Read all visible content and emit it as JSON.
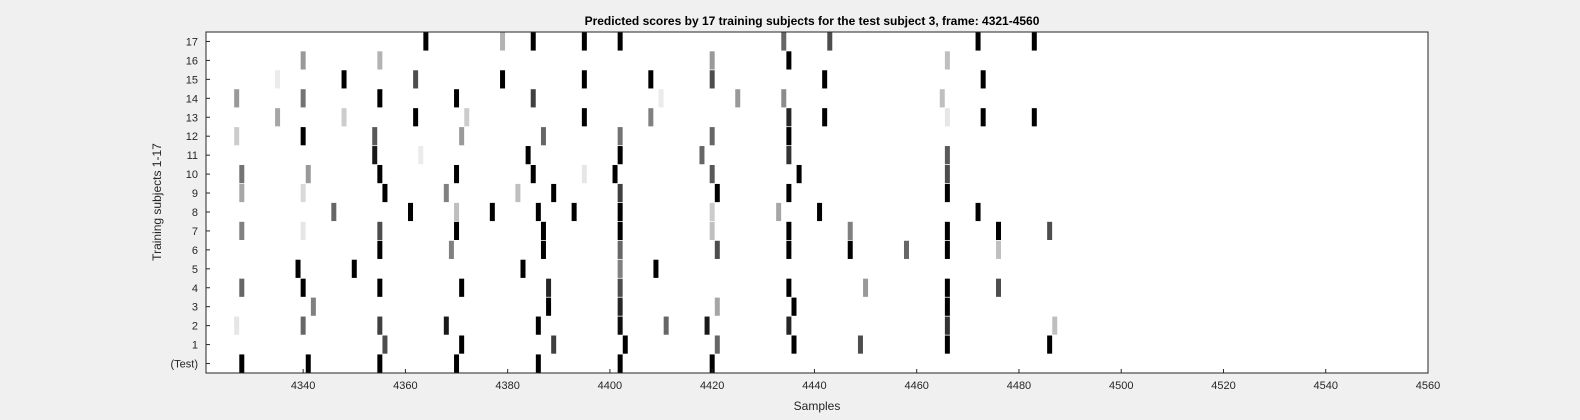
{
  "chart_data": {
    "type": "heatmap",
    "title": "Predicted scores by 17 training subjects for the test subject 3, frame: 4321-4560",
    "xlabel": "Samples",
    "ylabel": "Training subjects 1-17",
    "xlim": [
      4321,
      4560
    ],
    "x_ticks": [
      "4340",
      "4360",
      "4380",
      "4400",
      "4420",
      "4440",
      "4460",
      "4480",
      "4500",
      "4520",
      "4540",
      "4560"
    ],
    "y_tick_labels": [
      "(Test)",
      "1",
      "2",
      "3",
      "4",
      "5",
      "6",
      "7",
      "8",
      "9",
      "10",
      "11",
      "12",
      "13",
      "14",
      "15",
      "16",
      "17"
    ],
    "grid": false,
    "colormap": "gray-inverted",
    "rows": [
      {
        "label": "(Test)",
        "marks": [
          [
            4328,
            1.0
          ],
          [
            4341,
            1.0
          ],
          [
            4355,
            1.0
          ],
          [
            4370,
            1.0
          ],
          [
            4386,
            1.0
          ],
          [
            4402,
            1.0
          ],
          [
            4420,
            1.0
          ]
        ]
      },
      {
        "label": "1",
        "marks": [
          [
            4356,
            0.7
          ],
          [
            4371,
            1.0
          ],
          [
            4389,
            0.75
          ],
          [
            4403,
            1.0
          ],
          [
            4421,
            0.6
          ],
          [
            4436,
            1.0
          ],
          [
            4449,
            0.7
          ],
          [
            4466,
            1.0
          ],
          [
            4486,
            1.0
          ]
        ]
      },
      {
        "label": "2",
        "marks": [
          [
            4327,
            0.1
          ],
          [
            4340,
            0.6
          ],
          [
            4355,
            0.75
          ],
          [
            4368,
            0.9
          ],
          [
            4386,
            1.0
          ],
          [
            4402,
            0.95
          ],
          [
            4411,
            0.6
          ],
          [
            4419,
            0.9
          ],
          [
            4435,
            0.85
          ],
          [
            4466,
            0.8
          ],
          [
            4487,
            0.25
          ]
        ]
      },
      {
        "label": "3",
        "marks": [
          [
            4342,
            0.5
          ],
          [
            4388,
            1.0
          ],
          [
            4402,
            0.85
          ],
          [
            4421,
            0.35
          ],
          [
            4436,
            1.0
          ],
          [
            4466,
            1.0
          ]
        ]
      },
      {
        "label": "4",
        "marks": [
          [
            4328,
            0.6
          ],
          [
            4340,
            1.0
          ],
          [
            4355,
            1.0
          ],
          [
            4371,
            1.0
          ],
          [
            4388,
            0.85
          ],
          [
            4402,
            0.7
          ],
          [
            4435,
            1.0
          ],
          [
            4450,
            0.4
          ],
          [
            4466,
            1.0
          ],
          [
            4476,
            0.7
          ]
        ]
      },
      {
        "label": "5",
        "marks": [
          [
            4339,
            1.0
          ],
          [
            4350,
            1.0
          ],
          [
            4383,
            1.0
          ],
          [
            4402,
            0.5
          ],
          [
            4409,
            1.0
          ]
        ]
      },
      {
        "label": "6",
        "marks": [
          [
            4355,
            1.0
          ],
          [
            4369,
            0.5
          ],
          [
            4387,
            1.0
          ],
          [
            4402,
            0.6
          ],
          [
            4421,
            0.7
          ],
          [
            4435,
            1.0
          ],
          [
            4447,
            1.0
          ],
          [
            4458,
            0.6
          ],
          [
            4466,
            1.0
          ],
          [
            4476,
            0.25
          ]
        ]
      },
      {
        "label": "7",
        "marks": [
          [
            4328,
            0.5
          ],
          [
            4340,
            0.1
          ],
          [
            4355,
            0.7
          ],
          [
            4370,
            1.0
          ],
          [
            4387,
            1.0
          ],
          [
            4402,
            1.0
          ],
          [
            4420,
            0.25
          ],
          [
            4435,
            1.0
          ],
          [
            4447,
            0.5
          ],
          [
            4466,
            1.0
          ],
          [
            4476,
            1.0
          ],
          [
            4486,
            0.7
          ]
        ]
      },
      {
        "label": "8",
        "marks": [
          [
            4346,
            0.6
          ],
          [
            4361,
            1.0
          ],
          [
            4370,
            0.25
          ],
          [
            4377,
            1.0
          ],
          [
            4386,
            1.0
          ],
          [
            4393,
            1.0
          ],
          [
            4402,
            1.0
          ],
          [
            4420,
            0.2
          ],
          [
            4433,
            0.35
          ],
          [
            4441,
            1.0
          ],
          [
            4472,
            1.0
          ]
        ]
      },
      {
        "label": "9",
        "marks": [
          [
            4328,
            0.35
          ],
          [
            4340,
            0.15
          ],
          [
            4356,
            1.0
          ],
          [
            4368,
            0.5
          ],
          [
            4382,
            0.25
          ],
          [
            4389,
            1.0
          ],
          [
            4402,
            0.75
          ],
          [
            4421,
            1.0
          ],
          [
            4435,
            1.0
          ],
          [
            4466,
            1.0
          ]
        ]
      },
      {
        "label": "10",
        "marks": [
          [
            4328,
            0.55
          ],
          [
            4341,
            0.4
          ],
          [
            4355,
            1.0
          ],
          [
            4370,
            1.0
          ],
          [
            4385,
            1.0
          ],
          [
            4395,
            0.1
          ],
          [
            4401,
            1.0
          ],
          [
            4420,
            0.65
          ],
          [
            4437,
            1.0
          ],
          [
            4466,
            0.7
          ]
        ]
      },
      {
        "label": "11",
        "marks": [
          [
            4354,
            0.9
          ],
          [
            4363,
            0.08
          ],
          [
            4384,
            1.0
          ],
          [
            4402,
            1.0
          ],
          [
            4418,
            0.6
          ],
          [
            4435,
            0.8
          ],
          [
            4466,
            0.65
          ]
        ]
      },
      {
        "label": "12",
        "marks": [
          [
            4327,
            0.2
          ],
          [
            4340,
            1.0
          ],
          [
            4354,
            0.65
          ],
          [
            4371,
            0.4
          ],
          [
            4387,
            0.6
          ],
          [
            4402,
            0.55
          ],
          [
            4420,
            0.6
          ],
          [
            4435,
            1.0
          ]
        ]
      },
      {
        "label": "13",
        "marks": [
          [
            4335,
            0.35
          ],
          [
            4348,
            0.2
          ],
          [
            4362,
            1.0
          ],
          [
            4372,
            0.2
          ],
          [
            4395,
            1.0
          ],
          [
            4408,
            0.5
          ],
          [
            4435,
            0.85
          ],
          [
            4442,
            1.0
          ],
          [
            4466,
            0.1
          ],
          [
            4473,
            1.0
          ],
          [
            4483,
            1.0
          ]
        ]
      },
      {
        "label": "14",
        "marks": [
          [
            4327,
            0.4
          ],
          [
            4340,
            0.55
          ],
          [
            4355,
            1.0
          ],
          [
            4370,
            1.0
          ],
          [
            4385,
            0.75
          ],
          [
            4410,
            0.08
          ],
          [
            4425,
            0.4
          ],
          [
            4434,
            0.45
          ],
          [
            4465,
            0.25
          ]
        ]
      },
      {
        "label": "15",
        "marks": [
          [
            4335,
            0.08
          ],
          [
            4348,
            1.0
          ],
          [
            4362,
            0.7
          ],
          [
            4379,
            1.0
          ],
          [
            4395,
            1.0
          ],
          [
            4408,
            1.0
          ],
          [
            4420,
            0.7
          ],
          [
            4442,
            1.0
          ],
          [
            4473,
            1.0
          ]
        ]
      },
      {
        "label": "16",
        "marks": [
          [
            4340,
            0.4
          ],
          [
            4355,
            0.3
          ],
          [
            4420,
            0.4
          ],
          [
            4435,
            1.0
          ],
          [
            4466,
            0.25
          ]
        ]
      },
      {
        "label": "17",
        "marks": [
          [
            4364,
            1.0
          ],
          [
            4379,
            0.3
          ],
          [
            4385,
            1.0
          ],
          [
            4395,
            1.0
          ],
          [
            4402,
            1.0
          ],
          [
            4434,
            0.6
          ],
          [
            4443,
            0.7
          ],
          [
            4472,
            1.0
          ],
          [
            4483,
            1.0
          ]
        ]
      }
    ]
  }
}
